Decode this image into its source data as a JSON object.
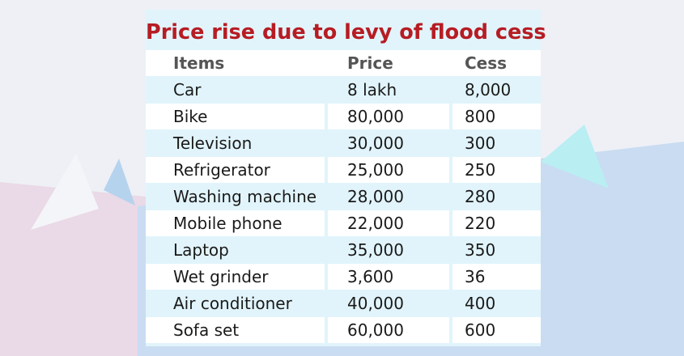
{
  "table": {
    "title": "Price rise due to levy of flood cess",
    "columns": [
      "Items",
      "Price",
      "Cess"
    ],
    "rows": [
      [
        "Car",
        "8 lakh",
        "8,000"
      ],
      [
        "Bike",
        "80,000",
        "800"
      ],
      [
        "Television",
        "30,000",
        "300"
      ],
      [
        "Refrigerator",
        "25,000",
        "250"
      ],
      [
        "Washing machine",
        "28,000",
        "280"
      ],
      [
        "Mobile phone",
        "22,000",
        "220"
      ],
      [
        "Laptop",
        "35,000",
        "350"
      ],
      [
        "Wet grinder",
        "3,600",
        "36"
      ],
      [
        "Air conditioner",
        "40,000",
        "400"
      ],
      [
        "Sofa set",
        "60,000",
        "600"
      ]
    ]
  },
  "colors": {
    "title": "#b71c23",
    "header_text": "#555555",
    "band_light": "#e1f4fb",
    "band_white": "#ffffff"
  }
}
